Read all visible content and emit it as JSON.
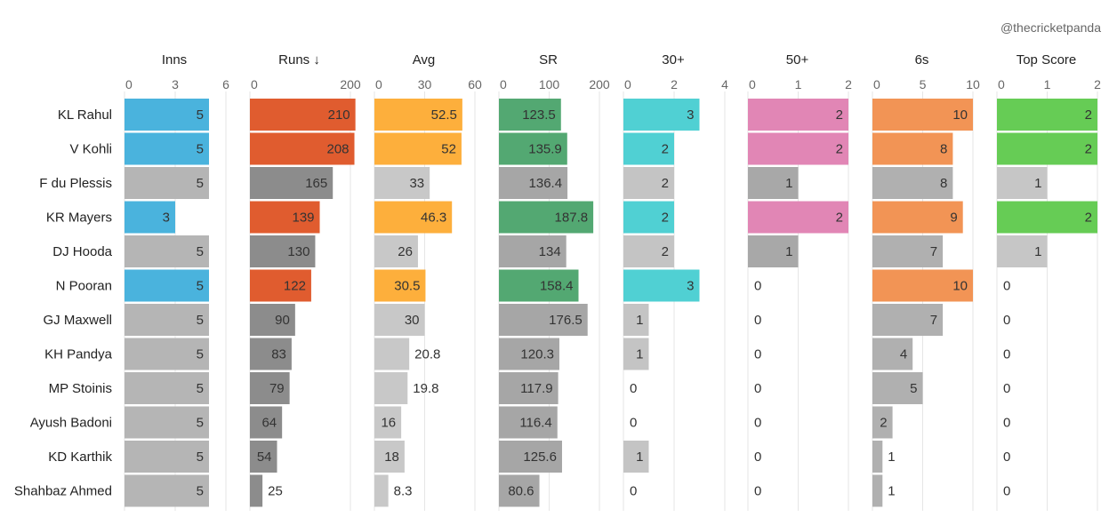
{
  "credit": "@thecricketpanda",
  "chart_data": {
    "type": "bar",
    "orientation": "horizontal",
    "players": [
      "KL Rahul",
      "V Kohli",
      "F du Plessis",
      "KR Mayers",
      "DJ Hooda",
      "N Pooran",
      "GJ Maxwell",
      "KH Pandya",
      "MP Stoinis",
      "Ayush Badoni",
      "KD Karthik",
      "Shahbaz Ahmed"
    ],
    "highlighted": [
      true,
      true,
      false,
      true,
      false,
      true,
      false,
      false,
      false,
      false,
      false,
      false
    ],
    "grey_color": "#b3b3b3",
    "panels": [
      {
        "header": "Inns",
        "ticks": [
          "0",
          "3",
          "6"
        ],
        "tick_values": [
          0,
          3,
          6
        ],
        "max": 6,
        "color": "#4ab3dd",
        "grey": "#b5b5b5",
        "values": [
          5,
          5,
          5,
          3,
          5,
          5,
          5,
          5,
          5,
          5,
          5,
          5
        ],
        "labels": [
          "5",
          "5",
          "5",
          "3",
          "5",
          "5",
          "5",
          "5",
          "5",
          "5",
          "5",
          "5"
        ]
      },
      {
        "header": "Runs ↓",
        "ticks": [
          "0",
          "200"
        ],
        "tick_values": [
          0,
          200
        ],
        "max": 200,
        "color": "#e05c2f",
        "grey": "#8c8c8c",
        "values": [
          210,
          208,
          165,
          139,
          130,
          122,
          90,
          83,
          79,
          64,
          54,
          25
        ],
        "labels": [
          "210",
          "208",
          "165",
          "139",
          "130",
          "122",
          "90",
          "83",
          "79",
          "64",
          "54",
          "25"
        ]
      },
      {
        "header": "Avg",
        "ticks": [
          "0",
          "30",
          "60"
        ],
        "tick_values": [
          0,
          30,
          60
        ],
        "max": 60,
        "color": "#fdaf3c",
        "grey": "#c8c8c8",
        "values": [
          52.5,
          52,
          33,
          46.3,
          26,
          30.5,
          30,
          20.8,
          19.8,
          16,
          18,
          8.3
        ],
        "labels": [
          "52.5",
          "52",
          "33",
          "46.3",
          "26",
          "30.5",
          "30",
          "20.8",
          "19.8",
          "16",
          "18",
          "8.3"
        ]
      },
      {
        "header": "SR",
        "ticks": [
          "0",
          "100",
          "200"
        ],
        "tick_values": [
          0,
          100,
          200
        ],
        "max": 200,
        "color": "#53a872",
        "grey": "#a6a6a6",
        "values": [
          123.5,
          135.9,
          136.4,
          187.8,
          134,
          158.4,
          176.5,
          120.3,
          117.9,
          116.4,
          125.6,
          80.6
        ],
        "labels": [
          "123.5",
          "135.9",
          "136.4",
          "187.8",
          "134",
          "158.4",
          "176.5",
          "120.3",
          "117.9",
          "116.4",
          "125.6",
          "80.6"
        ]
      },
      {
        "header": "30+",
        "ticks": [
          "0",
          "2",
          "4"
        ],
        "tick_values": [
          0,
          2,
          4
        ],
        "max": 4,
        "color": "#50d0d3",
        "grey": "#c4c4c4",
        "values": [
          3,
          2,
          2,
          2,
          2,
          3,
          1,
          1,
          0,
          0,
          1,
          0
        ],
        "labels": [
          "3",
          "2",
          "2",
          "2",
          "2",
          "3",
          "1",
          "1",
          "0",
          "0",
          "1",
          "0"
        ]
      },
      {
        "header": "50+",
        "ticks": [
          "0",
          "1",
          "2"
        ],
        "tick_values": [
          0,
          1,
          2
        ],
        "max": 2,
        "color": "#e186b5",
        "grey": "#a8a8a8",
        "values": [
          2,
          2,
          1,
          2,
          1,
          0,
          0,
          0,
          0,
          0,
          0,
          0
        ],
        "labels": [
          "2",
          "2",
          "1",
          "2",
          "1",
          "0",
          "0",
          "0",
          "0",
          "0",
          "0",
          "0"
        ]
      },
      {
        "header": "6s",
        "ticks": [
          "0",
          "5",
          "10"
        ],
        "tick_values": [
          0,
          5,
          10
        ],
        "max": 10,
        "color": "#f29455",
        "grey": "#b0b0b0",
        "values": [
          10,
          8,
          8,
          9,
          7,
          10,
          7,
          4,
          5,
          2,
          1,
          1
        ],
        "labels": [
          "10",
          "8",
          "8",
          "9",
          "7",
          "10",
          "7",
          "4",
          "5",
          "2",
          "1",
          "1"
        ]
      },
      {
        "header": "Top Score",
        "ticks": [
          "0",
          "1",
          "2"
        ],
        "tick_values": [
          0,
          1,
          2
        ],
        "max": 2,
        "color": "#66cc55",
        "grey": "#c6c6c6",
        "values": [
          2,
          2,
          1,
          2,
          1,
          0,
          0,
          0,
          0,
          0,
          0,
          0
        ],
        "labels": [
          "2",
          "2",
          "1",
          "2",
          "1",
          "0",
          "0",
          "0",
          "0",
          "0",
          "0",
          "0"
        ]
      }
    ]
  }
}
